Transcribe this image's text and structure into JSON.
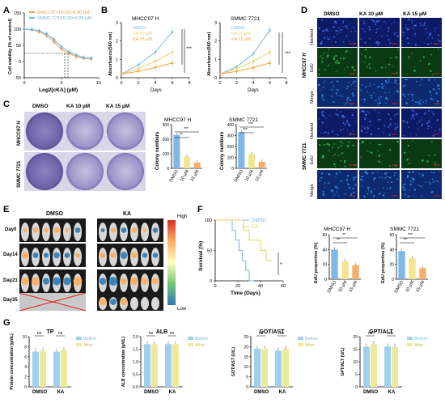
{
  "panels": {
    "A": "A",
    "B": "B",
    "C": "C",
    "D": "D",
    "E": "E",
    "F": "F",
    "G": "G"
  },
  "colors": {
    "mhcc_orange": "#f0a04b",
    "smmc_blue": "#6cb3dc",
    "dmso_blue": "#7fb8e6",
    "ka10_yellow": "#e6d36a",
    "ka15_orange": "#f2a33d",
    "before_blue": "#9fd0ec",
    "after_yellow": "#ecea9c",
    "bar_orange": "#f4b06b",
    "bar_yellow": "#f2e58f",
    "bar_blue": "#7fb8e6",
    "red": "#e2231a"
  },
  "panel_a": {
    "legend": [
      "MHCC97 H IC50=8.40 µM",
      "SMMC 7721 IC50=9.85 µM"
    ],
    "ylabel": "Cell viability (% of control)",
    "xlabel": "Log2[cKA] (µM)"
  },
  "panel_b": {
    "left_title": "MHCC97 H",
    "right_title": "SMMC 7721",
    "legend": [
      "DMSO",
      "KA 10 µM",
      "KA 15 µM"
    ],
    "ylabel": "Absorbance(560 nm)",
    "xlabel": "Days",
    "sig": "***"
  },
  "panel_c": {
    "col_labels": [
      "DMSO",
      "KA 10 µM",
      "KA 15 µM"
    ],
    "row_labels": [
      "MHCC97 H",
      "SMMC 7721"
    ],
    "chart_titles": [
      "MHCC97 H",
      "SMMC 7721"
    ],
    "ylabel": "Colony numbers",
    "xcats": [
      "DMSO",
      "10 µM",
      "15 µM"
    ],
    "sig": [
      "***",
      "**",
      "***",
      "***"
    ]
  },
  "panel_d": {
    "col_labels": [
      "DMSO",
      "KA 10 µM",
      "KA 15 µM"
    ],
    "row_labels": [
      "Hochest",
      "EdU",
      "Merge",
      "Hochest",
      "EdU",
      "Merge"
    ],
    "group_labels": [
      "MHCC97 H",
      "SMMC 7721"
    ]
  },
  "panel_e": {
    "col_labels": [
      "DMSO",
      "KA"
    ],
    "row_labels": [
      "Day0",
      "Day14",
      "Day21",
      "Day35"
    ],
    "scale_high": "High",
    "scale_low": "Low"
  },
  "panel_f": {
    "legend": [
      "DMSO",
      "KA"
    ],
    "ylabel": "Survival (%)",
    "xlabel": "Time (Days)",
    "sig": "*",
    "bar_titles": [
      "MHCC97 H",
      "SMMC 7721"
    ],
    "bar_ylabel": "EdU proportion (%)",
    "xcats": [
      "DMSO",
      "10 µM",
      "15 µM"
    ]
  },
  "panel_g": {
    "titles": [
      "TP",
      "ALB",
      "GOT/AST",
      "GPT/ALT"
    ],
    "ylabels": [
      "Protein concentration (g/dL)",
      "ALB concentration (g/dL)",
      "GOT/AST (U/L)",
      "GPT/ALT (U/L)"
    ],
    "xcats": [
      "DMSO",
      "KA"
    ],
    "legend": [
      "Before",
      "After"
    ],
    "ns": "ns"
  },
  "chart_data": [
    {
      "type": "line",
      "title": "",
      "xlabel": "Log2[cKA] (µM)",
      "ylabel": "Cell viability (% of control)",
      "xlim": [
        0,
        10
      ],
      "ylim": [
        -50,
        150
      ],
      "x": [
        0,
        1,
        2,
        3,
        4,
        5,
        6,
        7,
        8,
        9
      ],
      "series": [
        {
          "name": "MHCC97 H IC50=8.40 µM",
          "values": [
            100,
            98,
            92,
            80,
            60,
            38,
            25,
            15,
            10,
            8
          ]
        },
        {
          "name": "SMMC 7721 IC50=9.85 µM",
          "values": [
            100,
            99,
            95,
            85,
            68,
            45,
            30,
            20,
            12,
            10
          ]
        }
      ]
    },
    {
      "type": "line",
      "title": "MHCC97 H",
      "xlabel": "Days",
      "ylabel": "Absorbance(560 nm)",
      "xlim": [
        0,
        8
      ],
      "ylim": [
        0,
        3
      ],
      "x": [
        0,
        2,
        4,
        6
      ],
      "series": [
        {
          "name": "DMSO",
          "values": [
            0.2,
            0.7,
            1.4,
            2.5
          ]
        },
        {
          "name": "KA 10 µM",
          "values": [
            0.2,
            0.5,
            0.9,
            1.4
          ]
        },
        {
          "name": "KA 15 µM",
          "values": [
            0.2,
            0.35,
            0.55,
            0.8
          ]
        }
      ]
    },
    {
      "type": "line",
      "title": "SMMC 7721",
      "xlabel": "Days",
      "ylabel": "Absorbance(560 nm)",
      "xlim": [
        0,
        8
      ],
      "ylim": [
        0,
        3
      ],
      "x": [
        0,
        2,
        4,
        6
      ],
      "series": [
        {
          "name": "DMSO",
          "values": [
            0.2,
            0.6,
            1.3,
            2.6
          ]
        },
        {
          "name": "KA 10 µM",
          "values": [
            0.2,
            0.5,
            0.9,
            1.4
          ]
        },
        {
          "name": "KA 15 µM",
          "values": [
            0.2,
            0.35,
            0.55,
            0.8
          ]
        }
      ]
    },
    {
      "type": "bar",
      "title": "MHCC97 H",
      "ylabel": "Colony numbers",
      "categories": [
        "DMSO",
        "10 µM",
        "15 µM"
      ],
      "values": [
        230,
        80,
        40
      ],
      "ylim": [
        0,
        300
      ]
    },
    {
      "type": "bar",
      "title": "SMMC 7721",
      "ylabel": "Colony numbers",
      "categories": [
        "DMSO",
        "10 µM",
        "15 µM"
      ],
      "values": [
        330,
        130,
        60
      ],
      "ylim": [
        0,
        400
      ]
    },
    {
      "type": "line",
      "title": "",
      "xlabel": "Time (Days)",
      "ylabel": "Survival (%)",
      "xlim": [
        0,
        60
      ],
      "ylim": [
        0,
        100
      ],
      "series": [
        {
          "name": "DMSO",
          "x": [
            0,
            12,
            15,
            18,
            21,
            24,
            27,
            30,
            34
          ],
          "values": [
            100,
            100,
            83,
            67,
            50,
            33,
            17,
            0,
            0
          ]
        },
        {
          "name": "KA",
          "x": [
            0,
            20,
            25,
            30,
            35,
            40,
            45,
            50
          ],
          "values": [
            100,
            100,
            83,
            67,
            67,
            50,
            33,
            33
          ]
        }
      ]
    },
    {
      "type": "bar",
      "title": "MHCC97 H",
      "ylabel": "EdU proportion (%)",
      "categories": [
        "DMSO",
        "10 µM",
        "15 µM"
      ],
      "values": [
        40,
        24,
        19
      ],
      "ylim": [
        0,
        60
      ]
    },
    {
      "type": "bar",
      "title": "SMMC 7721",
      "ylabel": "EdU proportion (%)",
      "categories": [
        "DMSO",
        "10 µM",
        "15 µM"
      ],
      "values": [
        38,
        28,
        15
      ],
      "ylim": [
        0,
        60
      ]
    },
    {
      "type": "bar",
      "title": "TP",
      "ylabel": "Protein concentration (g/dL)",
      "categories": [
        "DMSO",
        "KA"
      ],
      "series": [
        {
          "name": "Before",
          "values": [
            7,
            7
          ]
        },
        {
          "name": "After",
          "values": [
            7.2,
            7.3
          ]
        }
      ],
      "ylim": [
        0,
        10
      ]
    },
    {
      "type": "bar",
      "title": "ALB",
      "ylabel": "ALB concentration (g/dL)",
      "categories": [
        "DMSO",
        "KA"
      ],
      "series": [
        {
          "name": "Before",
          "values": [
            1.7,
            1.7
          ]
        },
        {
          "name": "After",
          "values": [
            1.7,
            1.7
          ]
        }
      ],
      "ylim": [
        0,
        2
      ]
    },
    {
      "type": "bar",
      "title": "GOT/AST",
      "ylabel": "GOT/AST (U/L)",
      "categories": [
        "DMSO",
        "KA"
      ],
      "series": [
        {
          "name": "Before",
          "values": [
            19,
            18
          ]
        },
        {
          "name": "After",
          "values": [
            19,
            19
          ]
        }
      ],
      "ylim": [
        0,
        25
      ]
    },
    {
      "type": "bar",
      "title": "GPT/ALT",
      "ylabel": "GPT/ALT (U/L)",
      "categories": [
        "DMSO",
        "KA"
      ],
      "series": [
        {
          "name": "Before",
          "values": [
            16,
            16
          ]
        },
        {
          "name": "After",
          "values": [
            17,
            16
          ]
        }
      ],
      "ylim": [
        0,
        20
      ]
    }
  ]
}
